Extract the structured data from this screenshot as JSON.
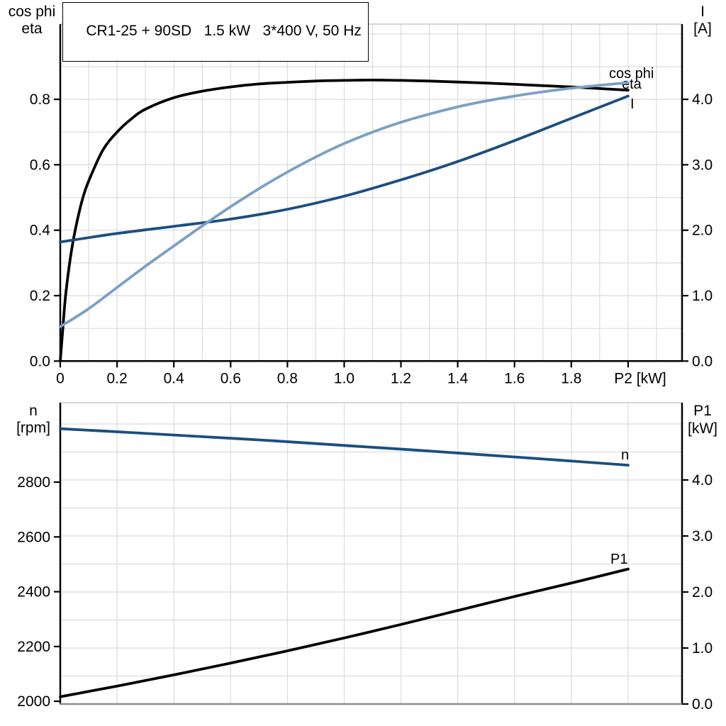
{
  "header": {
    "title": "CR1-25 + 90SD   1.5 kW   3*400 V, 50 Hz"
  },
  "colors": {
    "black_curve": "#000000",
    "light_blue_curve": "#7aa0c4",
    "dark_blue_curve": "#1b4e80",
    "grid": "#dcdcdc",
    "plot_top_edge": "#c8c8c8",
    "bottom_chart_baseline": "#8c8c8c",
    "axis": "#000000"
  },
  "chart_data": [
    {
      "id": "top-chart",
      "type": "line",
      "title": "CR1-25 + 90SD   1.5 kW   3*400 V, 50 Hz",
      "x_axis": {
        "label": "P2 [kW]",
        "range": [
          0,
          2.19
        ],
        "ticks": [
          0,
          0.2,
          0.4,
          0.6,
          0.8,
          1.0,
          1.2,
          1.4,
          1.6,
          1.8,
          2.0
        ],
        "tick_labels": [
          "0",
          "0.2",
          "0.4",
          "0.6",
          "0.8",
          "1.0",
          "1.2",
          "1.4",
          "1.6",
          "1.8",
          ""
        ]
      },
      "left_axis": {
        "label_lines": [
          "cos phi",
          "eta"
        ],
        "range": [
          0,
          1.03
        ],
        "ticks": [
          0,
          0.2,
          0.4,
          0.6,
          0.8
        ],
        "tick_labels": [
          "0.0",
          "0.2",
          "0.4",
          "0.6",
          "0.8"
        ]
      },
      "right_axis": {
        "label_lines": [
          "I",
          "[A]"
        ],
        "range": [
          0,
          5.15
        ],
        "ticks": [
          0,
          1,
          2,
          3,
          4
        ],
        "tick_labels": [
          "0.0",
          "1.0",
          "2.0",
          "3.0",
          "4.0"
        ]
      },
      "grid": {
        "on": true,
        "x_step": 0.1,
        "y_step": 0.1,
        "y_step_axis": "left"
      },
      "series": [
        {
          "name": "eta",
          "label": "eta",
          "axis": "left",
          "color": "#000000",
          "x": [
            0,
            0.01,
            0.02,
            0.04,
            0.06,
            0.08,
            0.1,
            0.15,
            0.2,
            0.25,
            0.3,
            0.4,
            0.5,
            0.6,
            0.7,
            0.8,
            0.9,
            1.0,
            1.1,
            1.2,
            1.3,
            1.4,
            1.5,
            1.6,
            1.7,
            1.8,
            1.9,
            2.0
          ],
          "y": [
            0,
            0.11,
            0.21,
            0.34,
            0.43,
            0.5,
            0.55,
            0.645,
            0.7,
            0.74,
            0.77,
            0.805,
            0.825,
            0.838,
            0.847,
            0.852,
            0.856,
            0.858,
            0.859,
            0.858,
            0.856,
            0.853,
            0.85,
            0.846,
            0.842,
            0.838,
            0.833,
            0.828
          ]
        },
        {
          "name": "I",
          "label": "I",
          "axis": "right",
          "color": "#1b4e80",
          "x": [
            0,
            0.2,
            0.4,
            0.6,
            0.8,
            1.0,
            1.2,
            1.4,
            1.6,
            1.8,
            2.0
          ],
          "y": [
            1.82,
            1.95,
            2.06,
            2.17,
            2.32,
            2.52,
            2.77,
            3.05,
            3.37,
            3.71,
            4.05
          ]
        },
        {
          "name": "cos phi",
          "label": "cos phi",
          "axis": "left",
          "color": "#7aa0c4",
          "x": [
            0,
            0.1,
            0.2,
            0.3,
            0.4,
            0.5,
            0.6,
            0.7,
            0.8,
            0.9,
            1.0,
            1.1,
            1.2,
            1.3,
            1.4,
            1.5,
            1.6,
            1.7,
            1.8,
            1.9,
            2.0
          ],
          "y": [
            0.105,
            0.16,
            0.225,
            0.29,
            0.352,
            0.413,
            0.472,
            0.527,
            0.578,
            0.624,
            0.665,
            0.7,
            0.73,
            0.755,
            0.777,
            0.795,
            0.81,
            0.823,
            0.834,
            0.843,
            0.851
          ]
        }
      ]
    },
    {
      "id": "bottom-chart",
      "type": "line",
      "x_axis": {
        "label": "",
        "range": [
          0,
          2.19
        ],
        "ticks": [],
        "tick_labels": []
      },
      "left_axis": {
        "label_lines": [
          "n",
          "[rpm]"
        ],
        "range": [
          1990,
          3090
        ],
        "ticks": [
          2000,
          2200,
          2400,
          2600,
          2800
        ],
        "tick_labels": [
          "2000",
          "2200",
          "2400",
          "2600",
          "2800"
        ]
      },
      "right_axis": {
        "label_lines": [
          "P1",
          "[kW]"
        ],
        "range": [
          0,
          5.38
        ],
        "ticks": [
          0,
          1,
          2,
          3,
          4
        ],
        "tick_labels": [
          "0.0",
          "1.0",
          "2.0",
          "3.0",
          "4.0"
        ]
      },
      "grid": {
        "on": true,
        "x_step": 0.2,
        "y_step": 0.5,
        "y_step_axis": "right"
      },
      "series": [
        {
          "name": "n",
          "label": "n",
          "axis": "left",
          "color": "#1b4e80",
          "x": [
            0,
            0.25,
            0.5,
            0.75,
            1.0,
            1.25,
            1.5,
            1.75,
            2.0
          ],
          "y": [
            2995,
            2981,
            2966,
            2951,
            2934,
            2917,
            2899,
            2881,
            2862
          ]
        },
        {
          "name": "P1",
          "label": "P1",
          "axis": "right",
          "color": "#000000",
          "x": [
            0,
            0.2,
            0.4,
            0.6,
            0.8,
            1.0,
            1.2,
            1.4,
            1.6,
            1.8,
            2.0
          ],
          "y": [
            0.13,
            0.32,
            0.52,
            0.73,
            0.95,
            1.18,
            1.42,
            1.67,
            1.92,
            2.16,
            2.41
          ]
        }
      ]
    }
  ]
}
